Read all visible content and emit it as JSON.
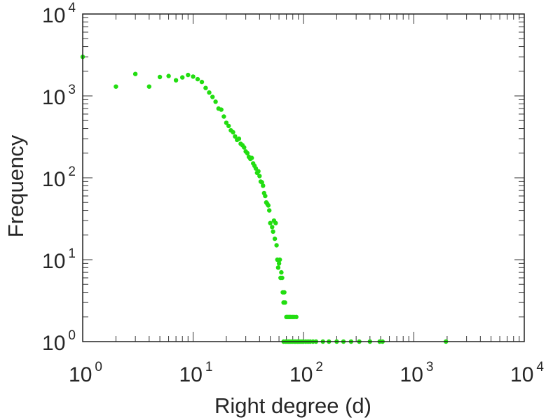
{
  "chart_data": {
    "type": "scatter",
    "xscale": "log",
    "yscale": "log",
    "xlim": [
      1,
      10000
    ],
    "ylim": [
      1,
      10000
    ],
    "xlabel": "Right degree (d)",
    "ylabel": "Frequency",
    "xticks": [
      {
        "base": "10",
        "exp": "0"
      },
      {
        "base": "10",
        "exp": "1"
      },
      {
        "base": "10",
        "exp": "2"
      },
      {
        "base": "10",
        "exp": "3"
      },
      {
        "base": "10",
        "exp": "4"
      }
    ],
    "yticks": [
      {
        "base": "10",
        "exp": "0"
      },
      {
        "base": "10",
        "exp": "1"
      },
      {
        "base": "10",
        "exp": "2"
      },
      {
        "base": "10",
        "exp": "3"
      },
      {
        "base": "10",
        "exp": "4"
      }
    ],
    "marker_color": "#22dd11",
    "points": [
      [
        1,
        3000
      ],
      [
        2,
        1300
      ],
      [
        3,
        1850
      ],
      [
        4,
        1300
      ],
      [
        5,
        1700
      ],
      [
        6,
        1750
      ],
      [
        7,
        1550
      ],
      [
        8,
        1680
      ],
      [
        9,
        1800
      ],
      [
        10,
        1720
      ],
      [
        11,
        1600
      ],
      [
        12,
        1480
      ],
      [
        13,
        1250
      ],
      [
        14,
        1100
      ],
      [
        15,
        970
      ],
      [
        16,
        850
      ],
      [
        17,
        700
      ],
      [
        18,
        680
      ],
      [
        19,
        560
      ],
      [
        20,
        470
      ],
      [
        21,
        430
      ],
      [
        22,
        380
      ],
      [
        23,
        360
      ],
      [
        24,
        320
      ],
      [
        25,
        290
      ],
      [
        26,
        300
      ],
      [
        27,
        260
      ],
      [
        28,
        250
      ],
      [
        29,
        235
      ],
      [
        30,
        210
      ],
      [
        31,
        200
      ],
      [
        32,
        180
      ],
      [
        33,
        170
      ],
      [
        34,
        175
      ],
      [
        35,
        150
      ],
      [
        36,
        140
      ],
      [
        37,
        130
      ],
      [
        38,
        115
      ],
      [
        39,
        120
      ],
      [
        40,
        105
      ],
      [
        41,
        90
      ],
      [
        42,
        88
      ],
      [
        43,
        80
      ],
      [
        44,
        65
      ],
      [
        45,
        60
      ],
      [
        46,
        50
      ],
      [
        47,
        48
      ],
      [
        48,
        46
      ],
      [
        49,
        40
      ],
      [
        50,
        28
      ],
      [
        52,
        25
      ],
      [
        53,
        22
      ],
      [
        54,
        30
      ],
      [
        55,
        18
      ],
      [
        56,
        28
      ],
      [
        57,
        15
      ],
      [
        58,
        10
      ],
      [
        59,
        8
      ],
      [
        60,
        9
      ],
      [
        61,
        10
      ],
      [
        62,
        6
      ],
      [
        63,
        7
      ],
      [
        64,
        6
      ],
      [
        65,
        4
      ],
      [
        66,
        3
      ],
      [
        67,
        4
      ],
      [
        68,
        3
      ],
      [
        70,
        2
      ],
      [
        72,
        2
      ],
      [
        74,
        2
      ],
      [
        76,
        2
      ],
      [
        79,
        2
      ],
      [
        82,
        2
      ],
      [
        86,
        2
      ],
      [
        66,
        1
      ],
      [
        69,
        1
      ],
      [
        71,
        1
      ],
      [
        73,
        1
      ],
      [
        75,
        1
      ],
      [
        77,
        1
      ],
      [
        80,
        1
      ],
      [
        83,
        1
      ],
      [
        85,
        1
      ],
      [
        88,
        1
      ],
      [
        90,
        1
      ],
      [
        93,
        1
      ],
      [
        97,
        1
      ],
      [
        100,
        1
      ],
      [
        105,
        1
      ],
      [
        110,
        1
      ],
      [
        115,
        1
      ],
      [
        122,
        1
      ],
      [
        130,
        1
      ],
      [
        150,
        1
      ],
      [
        170,
        1
      ],
      [
        200,
        1
      ],
      [
        230,
        1
      ],
      [
        270,
        1
      ],
      [
        320,
        1
      ],
      [
        400,
        1
      ],
      [
        490,
        1
      ],
      [
        520,
        1
      ],
      [
        1950,
        1
      ]
    ]
  }
}
